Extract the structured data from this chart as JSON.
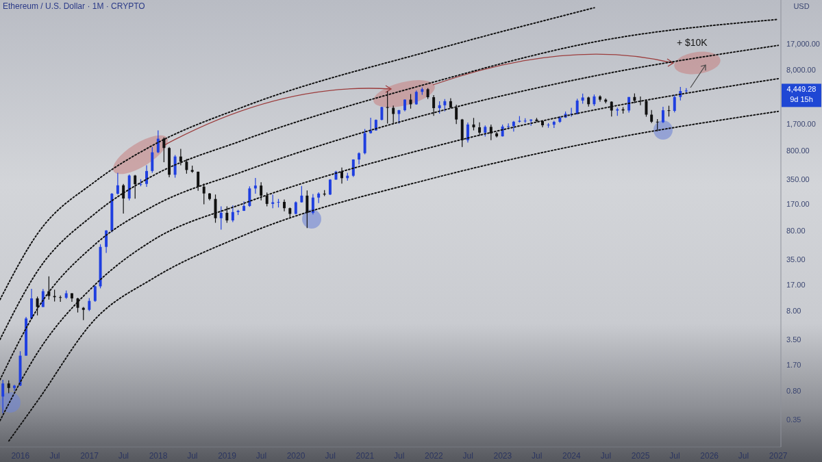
{
  "chart_data": {
    "type": "candlestick",
    "title": "Ethereum / U.S. Dollar · 1M · CRYPTO",
    "ylabel": "USD",
    "log": "y",
    "x": [
      "2015-10",
      "2015-11",
      "2015-12",
      "2016-01",
      "2016-02",
      "2016-03",
      "2016-04",
      "2016-05",
      "2016-06",
      "2016-07",
      "2016-08",
      "2016-09",
      "2016-10",
      "2016-11",
      "2016-12",
      "2017-01",
      "2017-02",
      "2017-03",
      "2017-04",
      "2017-05",
      "2017-06",
      "2017-07",
      "2017-08",
      "2017-09",
      "2017-10",
      "2017-11",
      "2017-12",
      "2018-01",
      "2018-02",
      "2018-03",
      "2018-04",
      "2018-05",
      "2018-06",
      "2018-07",
      "2018-08",
      "2018-09",
      "2018-10",
      "2018-11",
      "2018-12",
      "2019-01",
      "2019-02",
      "2019-03",
      "2019-04",
      "2019-05",
      "2019-06",
      "2019-07",
      "2019-08",
      "2019-09",
      "2019-10",
      "2019-11",
      "2019-12",
      "2020-01",
      "2020-02",
      "2020-03",
      "2020-04",
      "2020-05",
      "2020-06",
      "2020-07",
      "2020-08",
      "2020-09",
      "2020-10",
      "2020-11",
      "2020-12",
      "2021-01",
      "2021-02",
      "2021-03",
      "2021-04",
      "2021-05",
      "2021-06",
      "2021-07",
      "2021-08",
      "2021-09",
      "2021-10",
      "2021-11",
      "2021-12",
      "2022-01",
      "2022-02",
      "2022-03",
      "2022-04",
      "2022-05",
      "2022-06",
      "2022-07",
      "2022-08",
      "2022-09",
      "2022-10",
      "2022-11",
      "2022-12",
      "2023-01",
      "2023-02",
      "2023-03",
      "2023-04",
      "2023-05",
      "2023-06",
      "2023-07",
      "2023-08",
      "2023-09",
      "2023-10",
      "2023-11",
      "2023-12",
      "2024-01",
      "2024-02",
      "2024-03",
      "2024-04",
      "2024-05",
      "2024-06",
      "2024-07",
      "2024-08",
      "2024-09",
      "2024-10",
      "2024-11",
      "2024-12",
      "2025-01",
      "2025-02",
      "2025-03",
      "2025-04",
      "2025-05",
      "2025-06",
      "2025-07",
      "2025-08",
      "2025-09"
    ],
    "ohlc": [
      [
        0.68,
        1.1,
        0.42,
        0.99
      ],
      [
        0.99,
        1.08,
        0.75,
        0.87
      ],
      [
        0.87,
        0.95,
        0.8,
        0.93
      ],
      [
        0.93,
        2.5,
        0.92,
        2.2
      ],
      [
        2.2,
        6.7,
        2.2,
        6.4
      ],
      [
        6.4,
        15,
        6.4,
        11.4
      ],
      [
        11.4,
        12,
        7,
        8.9
      ],
      [
        8.9,
        14.9,
        8.9,
        14
      ],
      [
        14,
        21.5,
        11,
        12.2
      ],
      [
        12.2,
        14.6,
        10.4,
        11.8
      ],
      [
        11.8,
        12.4,
        10.3,
        11.6
      ],
      [
        11.6,
        14.3,
        11.2,
        13.2
      ],
      [
        13.2,
        13.2,
        10.3,
        11.4
      ],
      [
        11.4,
        11.6,
        7.6,
        8.7
      ],
      [
        8.7,
        8.9,
        6.1,
        8.2
      ],
      [
        8.2,
        11.5,
        7.9,
        10.6
      ],
      [
        10.6,
        16.6,
        10.3,
        16.1
      ],
      [
        16.1,
        54,
        15.2,
        50
      ],
      [
        50,
        81,
        42,
        80
      ],
      [
        80,
        235,
        76,
        230
      ],
      [
        230,
        420,
        225,
        293
      ],
      [
        293,
        305,
        130,
        201
      ],
      [
        201,
        400,
        190,
        388
      ],
      [
        388,
        395,
        200,
        303
      ],
      [
        303,
        350,
        285,
        305
      ],
      [
        305,
        520,
        280,
        442
      ],
      [
        442,
        880,
        420,
        756
      ],
      [
        756,
        1420,
        740,
        1118
      ],
      [
        1118,
        1160,
        570,
        856
      ],
      [
        856,
        880,
        370,
        397
      ],
      [
        397,
        700,
        365,
        670
      ],
      [
        670,
        835,
        520,
        577
      ],
      [
        577,
        625,
        410,
        455
      ],
      [
        455,
        515,
        420,
        433
      ],
      [
        433,
        435,
        250,
        282
      ],
      [
        282,
        310,
        170,
        232
      ],
      [
        232,
        235,
        190,
        198
      ],
      [
        198,
        225,
        100,
        114
      ],
      [
        114,
        160,
        82,
        133
      ],
      [
        133,
        160,
        100,
        107
      ],
      [
        107,
        165,
        102,
        136
      ],
      [
        136,
        145,
        125,
        141
      ],
      [
        141,
        185,
        140,
        162
      ],
      [
        162,
        285,
        158,
        268
      ],
      [
        268,
        362,
        230,
        291
      ],
      [
        291,
        320,
        190,
        218
      ],
      [
        218,
        239,
        160,
        172
      ],
      [
        172,
        225,
        152,
        180
      ],
      [
        180,
        198,
        155,
        182
      ],
      [
        182,
        195,
        139,
        152
      ],
      [
        152,
        155,
        117,
        129
      ],
      [
        129,
        185,
        127,
        180
      ],
      [
        180,
        288,
        178,
        218
      ],
      [
        218,
        253,
        86,
        133
      ],
      [
        133,
        228,
        127,
        206
      ],
      [
        206,
        240,
        176,
        231
      ],
      [
        231,
        256,
        215,
        225
      ],
      [
        225,
        350,
        222,
        345
      ],
      [
        345,
        445,
        345,
        434
      ],
      [
        434,
        488,
        308,
        360
      ],
      [
        360,
        420,
        335,
        386
      ],
      [
        386,
        620,
        373,
        615
      ],
      [
        615,
        755,
        535,
        737
      ],
      [
        737,
        1475,
        715,
        1312
      ],
      [
        1312,
        2040,
        1290,
        1417
      ],
      [
        1417,
        1940,
        1410,
        1919
      ],
      [
        1919,
        2800,
        1900,
        2773
      ],
      [
        2773,
        4380,
        1730,
        2709
      ],
      [
        2709,
        2900,
        1700,
        2275
      ],
      [
        2275,
        2560,
        1720,
        2535
      ],
      [
        2535,
        3470,
        2450,
        3433
      ],
      [
        3433,
        4030,
        2650,
        3000
      ],
      [
        3000,
        4460,
        2970,
        4290
      ],
      [
        4290,
        4870,
        3940,
        4630
      ],
      [
        4630,
        4780,
        3500,
        3680
      ],
      [
        3680,
        3900,
        2160,
        2690
      ],
      [
        2690,
        3280,
        2300,
        2920
      ],
      [
        2920,
        3480,
        2450,
        3280
      ],
      [
        3280,
        3580,
        2700,
        2730
      ],
      [
        2730,
        2970,
        1700,
        1940
      ],
      [
        1940,
        1970,
        880,
        1070
      ],
      [
        1070,
        1780,
        1000,
        1680
      ],
      [
        1680,
        2030,
        1420,
        1550
      ],
      [
        1550,
        1790,
        1220,
        1330
      ],
      [
        1330,
        1640,
        1190,
        1570
      ],
      [
        1570,
        1680,
        1070,
        1300
      ],
      [
        1300,
        1350,
        1160,
        1196
      ],
      [
        1196,
        1680,
        1190,
        1585
      ],
      [
        1585,
        1740,
        1460,
        1605
      ],
      [
        1605,
        1860,
        1370,
        1820
      ],
      [
        1820,
        2140,
        1780,
        1870
      ],
      [
        1870,
        2010,
        1760,
        1874
      ],
      [
        1874,
        1950,
        1620,
        1935
      ],
      [
        1935,
        2030,
        1825,
        1855
      ],
      [
        1855,
        1875,
        1550,
        1645
      ],
      [
        1645,
        1750,
        1530,
        1670
      ],
      [
        1670,
        1865,
        1520,
        1815
      ],
      [
        1815,
        2135,
        1765,
        2050
      ],
      [
        2050,
        2440,
        2030,
        2280
      ],
      [
        2280,
        2715,
        2100,
        2283
      ],
      [
        2283,
        3520,
        2240,
        3340
      ],
      [
        3340,
        4090,
        3050,
        3650
      ],
      [
        3650,
        3730,
        2810,
        3010
      ],
      [
        3010,
        3975,
        2860,
        3760
      ],
      [
        3760,
        3890,
        3240,
        3430
      ],
      [
        3430,
        3560,
        3080,
        3235
      ],
      [
        3235,
        3280,
        2110,
        2510
      ],
      [
        2510,
        2730,
        2150,
        2600
      ],
      [
        2600,
        2770,
        2300,
        2515
      ],
      [
        2515,
        3700,
        2360,
        3700
      ],
      [
        3700,
        4110,
        3100,
        3330
      ],
      [
        3330,
        3750,
        2920,
        3300
      ],
      [
        3300,
        3450,
        2100,
        2230
      ],
      [
        2230,
        2550,
        1750,
        1820
      ],
      [
        1820,
        1960,
        1385,
        1795
      ],
      [
        1795,
        2790,
        1750,
        2530
      ],
      [
        2530,
        2880,
        2110,
        2485
      ],
      [
        2485,
        3940,
        2380,
        3700
      ],
      [
        3700,
        4950,
        3360,
        4390
      ],
      [
        4390,
        4770,
        4210,
        4449.28
      ]
    ],
    "colors": [
      "#1f3fe0",
      "#111111",
      "#1f3fe0",
      "#1f3fe0",
      "#1f3fe0",
      "#1f3fe0",
      "#111111",
      "#1f3fe0",
      "#111111",
      "#111111",
      "#111111",
      "#1f3fe0",
      "#111111",
      "#111111",
      "#111111",
      "#1f3fe0",
      "#1f3fe0",
      "#1f3fe0",
      "#1f3fe0",
      "#1f3fe0",
      "#1f3fe0",
      "#111111",
      "#1f3fe0",
      "#111111",
      "#1f3fe0",
      "#1f3fe0",
      "#1f3fe0",
      "#1f3fe0",
      "#111111",
      "#111111",
      "#1f3fe0",
      "#111111",
      "#111111",
      "#111111",
      "#111111",
      "#111111",
      "#111111",
      "#111111",
      "#1f3fe0",
      "#111111",
      "#1f3fe0",
      "#1f3fe0",
      "#1f3fe0",
      "#1f3fe0",
      "#1f3fe0",
      "#111111",
      "#111111",
      "#1f3fe0",
      "#1f3fe0",
      "#111111",
      "#111111",
      "#1f3fe0",
      "#1f3fe0",
      "#111111",
      "#1f3fe0",
      "#1f3fe0",
      "#111111",
      "#1f3fe0",
      "#1f3fe0",
      "#111111",
      "#1f3fe0",
      "#1f3fe0",
      "#1f3fe0",
      "#1f3fe0",
      "#1f3fe0",
      "#1f3fe0",
      "#1f3fe0",
      "#111111",
      "#111111",
      "#1f3fe0",
      "#1f3fe0",
      "#111111",
      "#1f3fe0",
      "#1f3fe0",
      "#111111",
      "#111111",
      "#1f3fe0",
      "#1f3fe0",
      "#111111",
      "#111111",
      "#111111",
      "#1f3fe0",
      "#111111",
      "#111111",
      "#1f3fe0",
      "#111111",
      "#111111",
      "#1f3fe0",
      "#1f3fe0",
      "#1f3fe0",
      "#1f3fe0",
      "#1f3fe0",
      "#1f3fe0",
      "#111111",
      "#111111",
      "#1f3fe0",
      "#1f3fe0",
      "#1f3fe0",
      "#1f3fe0",
      "#1f3fe0",
      "#1f3fe0",
      "#1f3fe0",
      "#111111",
      "#1f3fe0",
      "#111111",
      "#111111",
      "#111111",
      "#1f3fe0",
      "#111111",
      "#1f3fe0",
      "#111111",
      "#111111",
      "#111111",
      "#111111",
      "#111111",
      "#1f3fe0",
      "#111111",
      "#1f3fe0",
      "#1f3fe0",
      "#1f3fe0"
    ],
    "series": [
      {
        "type": "line",
        "color": "#111111",
        "line_style": "dotted",
        "x": [
          "2015-09-15",
          "2016-04",
          "2017-02",
          "2017-12",
          "2019-04",
          "2022-01",
          "2024-05"
        ],
        "values": [
          11,
          73,
          328,
          920,
          2810,
          14300,
          48000
        ]
      },
      {
        "type": "line",
        "color": "#111111",
        "line_style": "dotted",
        "x": [
          "2015-09-15",
          "2016-04",
          "2017-02",
          "2017-12",
          "2019-04",
          "2022-01",
          "2024-05",
          "2027-01"
        ],
        "values": [
          3.5,
          25,
          131,
          383,
          1080,
          5690,
          18000,
          34400
        ]
      },
      {
        "type": "line",
        "color": "#111111",
        "line_style": "dotted",
        "x": [
          "2015-09-15",
          "2016-04",
          "2017-02",
          "2017-12",
          "2019-04",
          "2022-01",
          "2024-05",
          "2027-01"
        ],
        "values": [
          1.1,
          8.5,
          54,
          159,
          440,
          2360,
          6770,
          16300
        ]
      },
      {
        "type": "line",
        "color": "#111111",
        "line_style": "dotted",
        "x": [
          "2015-09-15",
          "2016-04",
          "2017-02",
          "2017-12",
          "2019-04",
          "2022-01",
          "2024-05",
          "2027-01"
        ],
        "values": [
          0.34,
          2.4,
          17,
          60,
          175,
          890,
          2550,
          6270
        ]
      },
      {
        "type": "line",
        "color": "#111111",
        "line_style": "dotted",
        "x": [
          "2015-11",
          "2016-04",
          "2017-02",
          "2017-12",
          "2019-04",
          "2022-01",
          "2024-05",
          "2027-01"
        ],
        "values": [
          0.19,
          0.6,
          6.3,
          20,
          70,
          361,
          1020,
          2450
        ]
      }
    ],
    "xlim": [
      "2015-09-15",
      "2027-01-15"
    ],
    "xticks": [
      {
        "value": "2016-01",
        "label": "2016"
      },
      {
        "value": "2016-07",
        "label": "Jul"
      },
      {
        "value": "2017-01",
        "label": "2017"
      },
      {
        "value": "2017-07",
        "label": "Jul"
      },
      {
        "value": "2018-01",
        "label": "2018"
      },
      {
        "value": "2018-07",
        "label": "Jul"
      },
      {
        "value": "2019-01",
        "label": "2019"
      },
      {
        "value": "2019-07",
        "label": "Jul"
      },
      {
        "value": "2020-01",
        "label": "2020"
      },
      {
        "value": "2020-07",
        "label": "Jul"
      },
      {
        "value": "2021-01",
        "label": "2021"
      },
      {
        "value": "2021-07",
        "label": "Jul"
      },
      {
        "value": "2022-01",
        "label": "2022"
      },
      {
        "value": "2022-07",
        "label": "Jul"
      },
      {
        "value": "2023-01",
        "label": "2023"
      },
      {
        "value": "2023-07",
        "label": "Jul"
      },
      {
        "value": "2024-01",
        "label": "2024"
      },
      {
        "value": "2024-07",
        "label": "Jul"
      },
      {
        "value": "2025-01",
        "label": "2025"
      },
      {
        "value": "2025-07",
        "label": "Jul"
      },
      {
        "value": "2026-01",
        "label": "2026"
      },
      {
        "value": "2026-07",
        "label": "Jul"
      },
      {
        "value": "2027-01",
        "label": "2027"
      }
    ],
    "ylim": [
      0.16,
      60000
    ],
    "yticks": [
      0.35,
      {
        "value": 0.8,
        "label": "0.80"
      },
      {
        "value": 1.7,
        "label": "1.70"
      },
      {
        "value": 3.5,
        "label": "3.50"
      },
      {
        "value": 8,
        "label": "8.00"
      },
      {
        "value": 17,
        "label": "17.00"
      },
      {
        "value": 35,
        "label": "35.00"
      },
      {
        "value": 80,
        "label": "80.00"
      },
      {
        "value": 170,
        "label": "170.00"
      },
      {
        "value": 350,
        "label": "350.00"
      },
      {
        "value": 800,
        "label": "800.00"
      },
      {
        "value": 1700,
        "label": "1,700.00"
      },
      {
        "value": 8000,
        "label": "8,000.00"
      },
      {
        "value": 17000,
        "label": "17,000.00"
      }
    ],
    "annotations": [
      {
        "text": "+ $10K",
        "x": "2025-10",
        "y": 10800
      },
      "4,449.28",
      "9d 15h"
    ]
  }
}
